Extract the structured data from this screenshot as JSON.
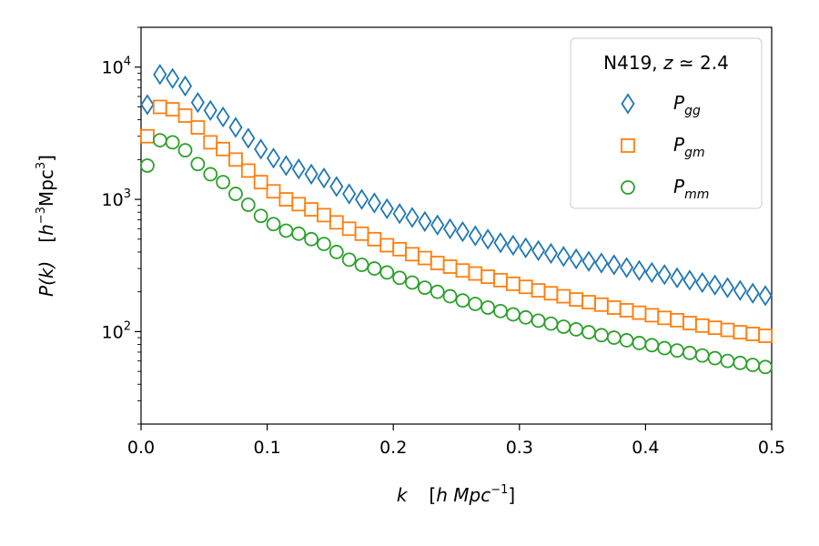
{
  "chart_data": {
    "type": "scatter",
    "title": "",
    "xlabel": {
      "var": "k",
      "unit_base": "h Mpc",
      "unit_exp": "−1"
    },
    "ylabel": {
      "var": "P(k)",
      "unit_h": "h",
      "unit_h_exp": "−3",
      "unit_mpc": "Mpc",
      "unit_mpc_exp": "3"
    },
    "x_axis": {
      "range": [
        0.0,
        0.5
      ],
      "ticks": [
        0.0,
        0.1,
        0.2,
        0.3,
        0.4,
        0.5
      ],
      "tick_labels": [
        "0.0",
        "0.1",
        "0.2",
        "0.3",
        "0.4",
        "0.5"
      ]
    },
    "y_axis": {
      "scale": "log",
      "range": [
        20,
        20000
      ],
      "major_ticks": [
        100,
        1000,
        10000
      ],
      "tick_labels": [
        {
          "base": "10",
          "exp": "2"
        },
        {
          "base": "10",
          "exp": "3"
        },
        {
          "base": "10",
          "exp": "4"
        }
      ]
    },
    "legend": {
      "position": "top-right",
      "title_prefix": "N419, ",
      "title_var": "z",
      "title_value": " ≃ 2.4"
    },
    "x": [
      0.005,
      0.015,
      0.025,
      0.035,
      0.045,
      0.055,
      0.065,
      0.075,
      0.085,
      0.095,
      0.105,
      0.115,
      0.125,
      0.135,
      0.145,
      0.155,
      0.165,
      0.175,
      0.185,
      0.195,
      0.205,
      0.215,
      0.225,
      0.235,
      0.245,
      0.255,
      0.265,
      0.275,
      0.285,
      0.295,
      0.305,
      0.315,
      0.325,
      0.335,
      0.345,
      0.355,
      0.365,
      0.375,
      0.385,
      0.395,
      0.405,
      0.415,
      0.425,
      0.435,
      0.445,
      0.455,
      0.465,
      0.475,
      0.485,
      0.495
    ],
    "series": [
      {
        "name": "gg",
        "label_base": "P",
        "label_sub": "gg",
        "marker": "diamond",
        "color": "#1f77b4",
        "values": [
          5200,
          8800,
          8200,
          7200,
          5400,
          4700,
          4200,
          3500,
          2900,
          2400,
          2050,
          1800,
          1700,
          1550,
          1450,
          1250,
          1100,
          1000,
          940,
          850,
          780,
          730,
          680,
          640,
          600,
          570,
          530,
          500,
          470,
          450,
          430,
          410,
          390,
          370,
          355,
          340,
          330,
          320,
          305,
          290,
          280,
          270,
          255,
          245,
          235,
          225,
          215,
          205,
          195,
          187
        ]
      },
      {
        "name": "gm",
        "label_base": "P",
        "label_sub": "gm",
        "marker": "square",
        "color": "#ff7f0e",
        "values": [
          3000,
          5000,
          4800,
          4300,
          3500,
          2700,
          2400,
          2000,
          1650,
          1350,
          1150,
          1000,
          920,
          840,
          760,
          670,
          600,
          550,
          500,
          450,
          420,
          385,
          360,
          330,
          310,
          290,
          275,
          260,
          245,
          230,
          218,
          205,
          195,
          185,
          175,
          167,
          160,
          152,
          145,
          139,
          133,
          127,
          122,
          116,
          111,
          107,
          103,
          99,
          96,
          93
        ]
      },
      {
        "name": "mm",
        "label_base": "P",
        "label_sub": "mm",
        "marker": "circle",
        "color": "#2ca02c",
        "values": [
          1800,
          2800,
          2700,
          2350,
          1850,
          1550,
          1350,
          1100,
          910,
          750,
          650,
          580,
          550,
          500,
          460,
          400,
          350,
          320,
          300,
          280,
          255,
          235,
          215,
          200,
          185,
          172,
          162,
          152,
          143,
          135,
          128,
          121,
          115,
          109,
          104,
          99,
          94,
          90,
          86,
          82,
          79,
          75,
          72,
          69,
          66,
          63,
          60,
          58,
          56,
          54
        ]
      }
    ]
  }
}
